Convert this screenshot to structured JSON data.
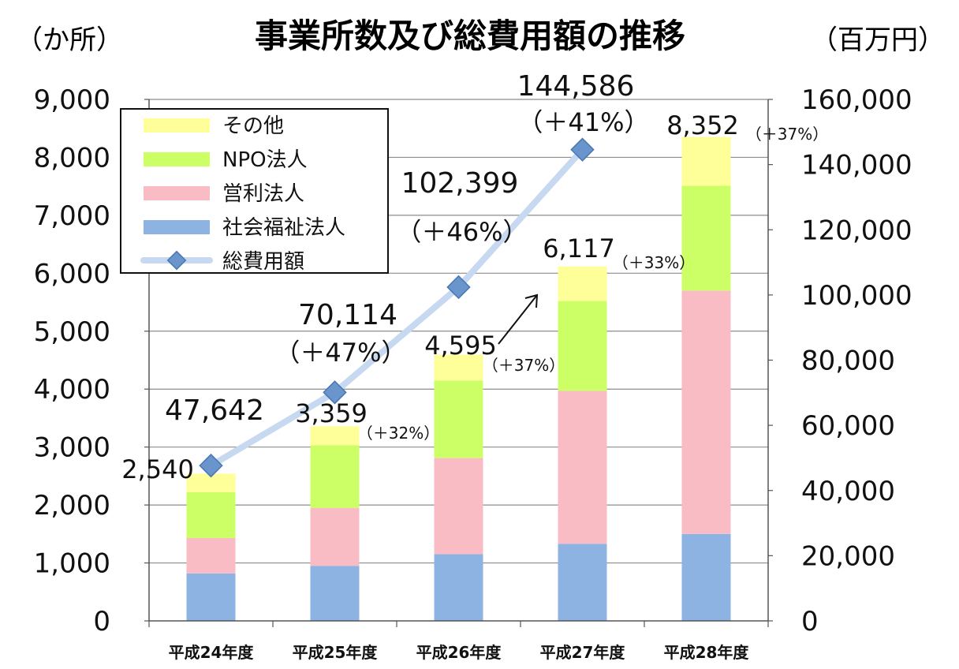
{
  "chart_data": {
    "type": "bar",
    "title": "事業所数及び総費用額の推移",
    "y_left_unit": "（か所）",
    "y_right_unit": "（百万円）",
    "categories": [
      "平成24年度",
      "平成25年度",
      "平成26年度",
      "平成27年度",
      "平成28年度"
    ],
    "stacked": true,
    "y_left_ticks": [
      "0",
      "1,000",
      "2,000",
      "3,000",
      "4,000",
      "5,000",
      "6,000",
      "7,000",
      "8,000",
      "9,000"
    ],
    "y_left_range": [
      0,
      9000
    ],
    "y_right_ticks": [
      "0",
      "20,000",
      "40,000",
      "60,000",
      "80,000",
      "100,000",
      "120,000",
      "140,000",
      "160,000"
    ],
    "y_right_range": [
      0,
      160000
    ],
    "grid": true,
    "legend_position": "top-left",
    "series": [
      {
        "name": "社会福祉法人",
        "color": "#8DB3E2",
        "values": [
          820,
          950,
          1150,
          1330,
          1500
        ]
      },
      {
        "name": "営利法人",
        "color": "#F9BCC5",
        "values": [
          610,
          1000,
          1660,
          2640,
          4200
        ]
      },
      {
        "name": "NPO法人",
        "color": "#CCFF66",
        "values": [
          790,
          1080,
          1340,
          1550,
          1810
        ]
      },
      {
        "name": "その他",
        "color": "#FFFF99",
        "values": [
          320,
          329,
          445,
          597,
          842
        ]
      }
    ],
    "bar_totals": [
      {
        "total": "2,540",
        "change": ""
      },
      {
        "total": "3,359",
        "change": "（＋32%）"
      },
      {
        "total": "4,595",
        "change": "（＋37%）"
      },
      {
        "total": "6,117",
        "change": "（＋33%）"
      },
      {
        "total": "8,352",
        "change": "（＋37%）"
      }
    ],
    "line": {
      "name": "総費用額",
      "axis": "right",
      "color": "#C6D9F1",
      "marker_color": "#6A95CC",
      "values": [
        47642,
        70114,
        102399,
        144586
      ],
      "labels": [
        "47,642",
        "70,114",
        "102,399",
        "144,586"
      ],
      "changes": [
        "",
        "（＋47%）",
        "（＋46%）",
        "（＋41%）"
      ]
    }
  }
}
